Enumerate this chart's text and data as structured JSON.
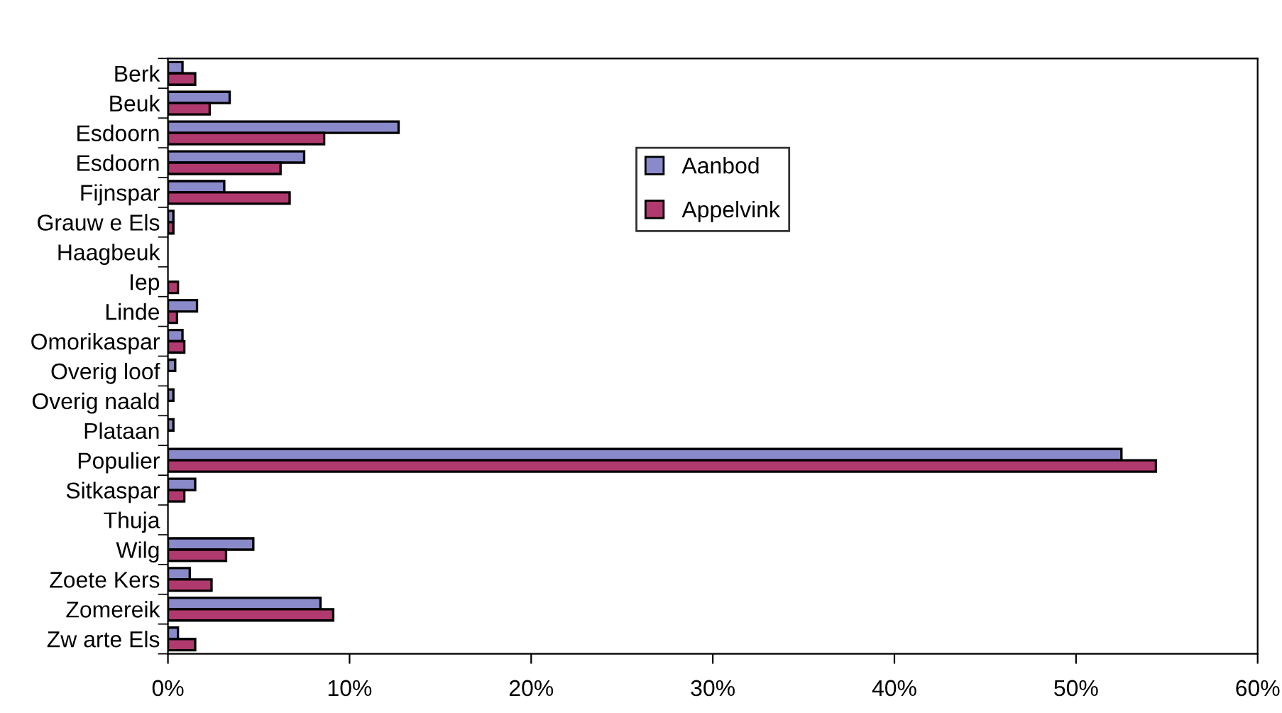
{
  "chart_data": {
    "type": "bar",
    "orientation": "horizontal",
    "categories": [
      "Berk",
      "Beuk",
      "Esdoorn",
      "Esdoorn",
      "Fijnspar",
      "Grauw e Els",
      "Haagbeuk",
      "Iep",
      "Linde",
      "Omorikaspar",
      "Overig loof",
      "Overig naald",
      "Plataan",
      "Populier",
      "Sitkaspar",
      "Thuja",
      "Wilg",
      "Zoete Kers",
      "Zomereik",
      "Zw arte Els"
    ],
    "series": [
      {
        "name": "Aanbod",
        "color": "#8a8acb",
        "values": [
          0.8,
          3.4,
          12.7,
          7.5,
          3.1,
          0.3,
          0,
          0,
          1.6,
          0.8,
          0.4,
          0.3,
          0.3,
          52.5,
          1.5,
          0,
          4.7,
          1.2,
          8.4,
          0.55
        ]
      },
      {
        "name": "Appelvink",
        "color": "#b03a6e",
        "values": [
          1.5,
          2.3,
          8.6,
          6.2,
          6.7,
          0.3,
          0,
          0.55,
          0.5,
          0.9,
          0,
          0,
          0,
          54.4,
          0.9,
          0,
          3.2,
          2.4,
          9.1,
          1.5
        ]
      }
    ],
    "xlim": [
      0,
      60
    ],
    "xticks": [
      {
        "value": 0,
        "label": "0%"
      },
      {
        "value": 10,
        "label": "10%"
      },
      {
        "value": 20,
        "label": "20%"
      },
      {
        "value": 30,
        "label": "30%"
      },
      {
        "value": 40,
        "label": "40%"
      },
      {
        "value": 50,
        "label": "50%"
      },
      {
        "value": 60,
        "label": "60%"
      }
    ],
    "grid": false,
    "legend": "center"
  }
}
